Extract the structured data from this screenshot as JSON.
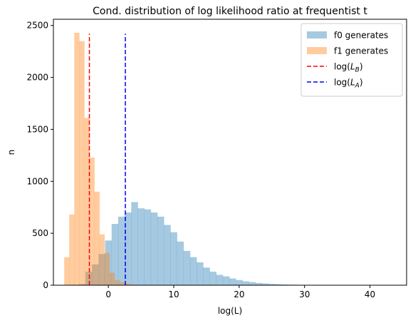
{
  "chart_data": {
    "type": "histogram",
    "title": "Cond. distribution of log likelihood ratio at frequentist  t",
    "xlabel": "log(L)",
    "ylabel": "n",
    "xlim": [
      -8.4,
      45.6
    ],
    "ylim": [
      0,
      2560
    ],
    "x_ticks": [
      0,
      10,
      20,
      30,
      40
    ],
    "y_ticks": [
      0,
      500,
      1000,
      1500,
      2000,
      2500
    ],
    "legend_position": "top-right",
    "series": [
      {
        "name": "f0 generates",
        "color": "#1f77b4",
        "alpha": 0.4,
        "bin_start": -4.5,
        "bin_width": 1.0,
        "counts": [
          10,
          130,
          200,
          300,
          430,
          590,
          660,
          700,
          800,
          740,
          730,
          700,
          660,
          580,
          510,
          420,
          330,
          270,
          220,
          170,
          130,
          100,
          85,
          65,
          50,
          38,
          30,
          22,
          17,
          12,
          9,
          7,
          5,
          4,
          3,
          2,
          2,
          1,
          1,
          1,
          1,
          1,
          1,
          1,
          1,
          1,
          1,
          1,
          1
        ]
      },
      {
        "name": "f1 generates",
        "color": "#ff7f0e",
        "alpha": 0.4,
        "bin_start": -6.75,
        "bin_width": 0.77,
        "counts": [
          270,
          680,
          2430,
          2350,
          1610,
          1230,
          900,
          490,
          310,
          120,
          50,
          30,
          15,
          5
        ]
      }
    ],
    "lines": [
      {
        "name": "log($L_B$)",
        "label_base": "log(",
        "label_var": "L",
        "label_sub": "B",
        "label_close": ")",
        "x": -2.9,
        "y_top": 2420,
        "color": "#ff0000",
        "style": "dashed"
      },
      {
        "name": "log($L_A$)",
        "label_base": "log(",
        "label_var": "L",
        "label_sub": "A",
        "label_close": ")",
        "x": 2.6,
        "y_top": 2420,
        "color": "#0000ff",
        "style": "dashed"
      }
    ]
  }
}
